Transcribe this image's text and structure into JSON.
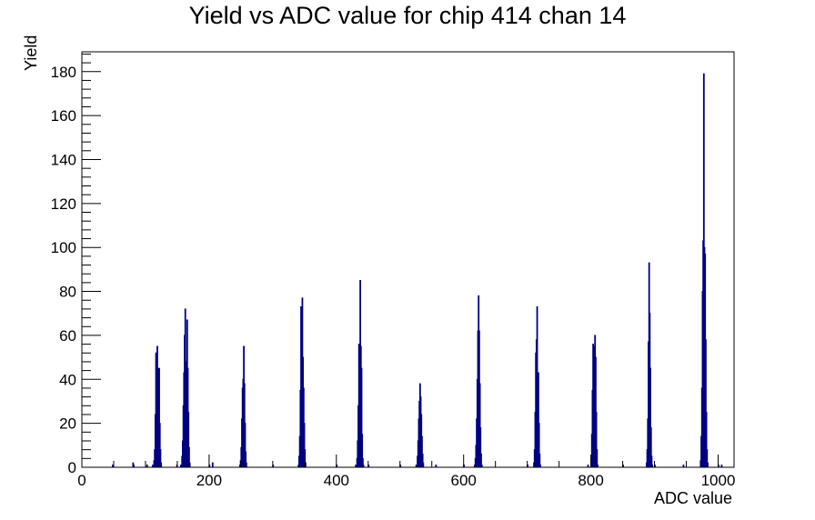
{
  "chart_data": {
    "type": "bar",
    "title": "Yield vs ADC value for chip 414 chan 14",
    "xlabel": "ADC value",
    "ylabel": "Yield",
    "xlim": [
      0,
      1025
    ],
    "ylim": [
      0,
      189
    ],
    "x_ticks": [
      0,
      200,
      400,
      600,
      800,
      1000
    ],
    "y_ticks": [
      0,
      20,
      40,
      60,
      80,
      100,
      120,
      140,
      160,
      180
    ],
    "grid": false,
    "line_color": "#000080",
    "series": [
      {
        "bins": [
          [
            48,
            1
          ],
          [
            80,
            2
          ],
          [
            81,
            1
          ],
          [
            102,
            1
          ],
          [
            111,
            1
          ],
          [
            113,
            3
          ],
          [
            114,
            8
          ],
          [
            115,
            24
          ],
          [
            116,
            52
          ],
          [
            117,
            38
          ],
          [
            118,
            55
          ],
          [
            119,
            45
          ],
          [
            120,
            27
          ],
          [
            121,
            45
          ],
          [
            122,
            20
          ],
          [
            123,
            8
          ],
          [
            124,
            2
          ],
          [
            149,
            1
          ],
          [
            155,
            1
          ],
          [
            157,
            5
          ],
          [
            158,
            12
          ],
          [
            159,
            28
          ],
          [
            160,
            43
          ],
          [
            161,
            60
          ],
          [
            162,
            72
          ],
          [
            163,
            48
          ],
          [
            164,
            26
          ],
          [
            165,
            67
          ],
          [
            166,
            45
          ],
          [
            167,
            25
          ],
          [
            168,
            9
          ],
          [
            169,
            2
          ],
          [
            200,
            1
          ],
          [
            205,
            2
          ],
          [
            248,
            1
          ],
          [
            249,
            3
          ],
          [
            250,
            9
          ],
          [
            251,
            22
          ],
          [
            252,
            36
          ],
          [
            253,
            40
          ],
          [
            254,
            55
          ],
          [
            255,
            38
          ],
          [
            256,
            20
          ],
          [
            257,
            7
          ],
          [
            258,
            2
          ],
          [
            300,
            1
          ],
          [
            340,
            1
          ],
          [
            341,
            5
          ],
          [
            342,
            14
          ],
          [
            343,
            35
          ],
          [
            344,
            73
          ],
          [
            345,
            60
          ],
          [
            346,
            77
          ],
          [
            347,
            50
          ],
          [
            348,
            36
          ],
          [
            349,
            20
          ],
          [
            350,
            8
          ],
          [
            351,
            2
          ],
          [
            400,
            1
          ],
          [
            430,
            1
          ],
          [
            432,
            4
          ],
          [
            433,
            12
          ],
          [
            434,
            28
          ],
          [
            435,
            56
          ],
          [
            436,
            38
          ],
          [
            437,
            85
          ],
          [
            438,
            55
          ],
          [
            439,
            45
          ],
          [
            440,
            15
          ],
          [
            441,
            4
          ],
          [
            442,
            1
          ],
          [
            450,
            1
          ],
          [
            500,
            1
          ],
          [
            525,
            1
          ],
          [
            527,
            5
          ],
          [
            528,
            12
          ],
          [
            529,
            22
          ],
          [
            530,
            30
          ],
          [
            531,
            38
          ],
          [
            532,
            32
          ],
          [
            533,
            24
          ],
          [
            534,
            14
          ],
          [
            535,
            6
          ],
          [
            536,
            2
          ],
          [
            556,
            1
          ],
          [
            600,
            1
          ],
          [
            617,
            1
          ],
          [
            618,
            4
          ],
          [
            619,
            10
          ],
          [
            620,
            22
          ],
          [
            621,
            40
          ],
          [
            622,
            62
          ],
          [
            623,
            78
          ],
          [
            624,
            62
          ],
          [
            625,
            38
          ],
          [
            626,
            18
          ],
          [
            627,
            6
          ],
          [
            628,
            1
          ],
          [
            700,
            1
          ],
          [
            710,
            2
          ],
          [
            711,
            8
          ],
          [
            712,
            25
          ],
          [
            713,
            52
          ],
          [
            714,
            58
          ],
          [
            715,
            73
          ],
          [
            716,
            22
          ],
          [
            717,
            43
          ],
          [
            718,
            20
          ],
          [
            719,
            6
          ],
          [
            720,
            1
          ],
          [
            795,
            1
          ],
          [
            800,
            4
          ],
          [
            801,
            15
          ],
          [
            802,
            35
          ],
          [
            803,
            56
          ],
          [
            804,
            45
          ],
          [
            805,
            55
          ],
          [
            806,
            60
          ],
          [
            807,
            50
          ],
          [
            808,
            25
          ],
          [
            809,
            8
          ],
          [
            810,
            1
          ],
          [
            850,
            1
          ],
          [
            887,
            2
          ],
          [
            888,
            8
          ],
          [
            889,
            22
          ],
          [
            890,
            57
          ],
          [
            891,
            93
          ],
          [
            892,
            70
          ],
          [
            893,
            45
          ],
          [
            894,
            18
          ],
          [
            895,
            5
          ],
          [
            896,
            1
          ],
          [
            900,
            1
          ],
          [
            945,
            1
          ],
          [
            972,
            3
          ],
          [
            973,
            14
          ],
          [
            974,
            36
          ],
          [
            975,
            80
          ],
          [
            976,
            103
          ],
          [
            977,
            179
          ],
          [
            978,
            100
          ],
          [
            979,
            97
          ],
          [
            980,
            58
          ],
          [
            981,
            25
          ],
          [
            982,
            8
          ],
          [
            983,
            2
          ],
          [
            1000,
            1
          ],
          [
            1005,
            1
          ]
        ]
      }
    ]
  }
}
